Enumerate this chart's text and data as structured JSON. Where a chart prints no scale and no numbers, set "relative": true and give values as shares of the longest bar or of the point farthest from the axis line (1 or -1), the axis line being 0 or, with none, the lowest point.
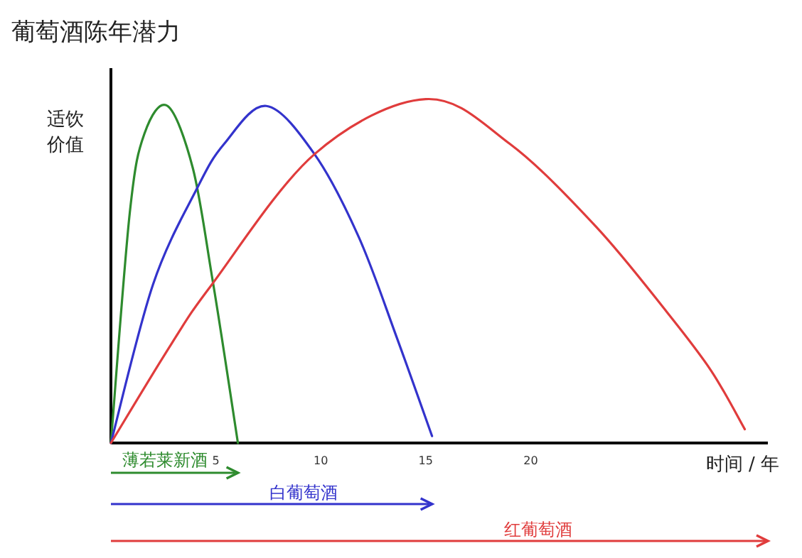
{
  "chart_data": {
    "type": "line",
    "title": "葡萄酒陈年潜力",
    "xlabel": "时间 / 年",
    "ylabel": "适饮价值",
    "relative": true,
    "legend": "bottom",
    "xlim": [
      0,
      31.3
    ],
    "xticks": [
      5,
      10,
      15,
      20
    ],
    "series": [
      {
        "name": "薄若莱新酒",
        "color": "#2e8b2e",
        "x": [
          0,
          0.9,
          1.6,
          2.7,
          3.9,
          4.8,
          5.4,
          6.05
        ],
        "values": [
          0,
          0.67,
          0.9,
          0.98,
          0.8,
          0.49,
          0.26,
          0
        ]
      },
      {
        "name": "白葡萄酒",
        "color": "#3333cc",
        "x": [
          0,
          2.0,
          4.1,
          5.4,
          7.4,
          9.7,
          11.8,
          13.6,
          15.3
        ],
        "values": [
          0,
          0.46,
          0.74,
          0.87,
          0.98,
          0.84,
          0.6,
          0.31,
          0.02
        ]
      },
      {
        "name": "红葡萄酒",
        "color": "#e03c3c",
        "x": [
          0,
          2.9,
          4.8,
          9.7,
          15.0,
          19.0,
          23.1,
          26.5,
          28.6,
          30.2
        ],
        "values": [
          0,
          0.29,
          0.46,
          0.84,
          1.0,
          0.87,
          0.63,
          0.38,
          0.21,
          0.04
        ]
      }
    ]
  }
}
